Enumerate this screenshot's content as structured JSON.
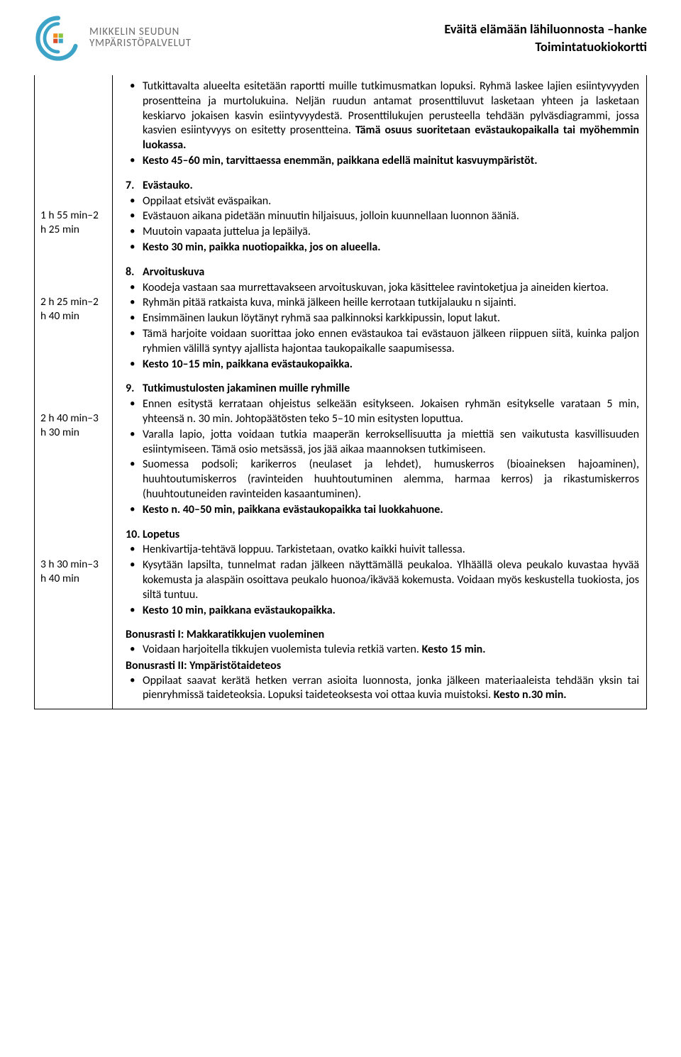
{
  "logo": {
    "line1": "MIKKELIN SEUDUN",
    "line2": "YMPÄRISTÖPALVELUT"
  },
  "header": {
    "title1": "Eväitä elämään lähiluonnosta –hanke",
    "title2": "Toimintatuokiokortti"
  },
  "colors": {
    "swirl_outer": "#3ea4c7",
    "swirl_accent1": "#f28c1e",
    "swirl_accent2": "#8bc540",
    "swirl_accent3": "#d84d2a",
    "logo_text": "#6c6c6c",
    "text": "#000000",
    "border": "#000000",
    "background": "#ffffff"
  },
  "intro": {
    "bullets": [
      "Tutkittavalta alueelta esitetään raportti muille tutkimusmatkan lopuksi. Ryhmä laskee lajien esiintyvyyden prosentteina ja murtolukuina. Neljän ruudun antamat prosenttiluvut lasketaan yhteen ja lasketaan keskiarvo jokaisen kasvin esiintyvyydestä. Prosenttilukujen perusteella tehdään pylväsdiagrammi, jossa kasvien esiintyvyys on esitetty prosentteina. <b>Tämä osuus suoritetaan evästaukopaikalla tai myöhemmin luokassa.</b>",
      "<b>Kesto 45–60 min, tarvittaessa enemmän, paikkana edellä mainitut kasvuympäristöt.</b>"
    ]
  },
  "sections": [
    {
      "time": "1 h 55 min–2 h 25 min",
      "num": "7.",
      "title": "Evästauko.",
      "bullets": [
        "Oppilaat etsivät eväspaikan.",
        "Evästauon aikana pidetään minuutin hiljaisuus, jolloin kuunnellaan luonnon ääniä.",
        "Muutoin vapaata juttelua ja lepäilyä.",
        "<b>Kesto 30 min, paikka nuotiopaikka, jos on alueella.</b>"
      ]
    },
    {
      "time": "2 h 25 min–2 h 40 min",
      "num": "8.",
      "title": "Arvoituskuva",
      "bullets": [
        "Koodeja vastaan saa murrettavakseen arvoituskuvan, joka käsittelee ravintoketjua ja aineiden kiertoa.",
        "Ryhmän pitää ratkaista kuva, minkä jälkeen heille kerrotaan tutkijalauku n sijainti.",
        "Ensimmäinen laukun löytänyt ryhmä saa palkinnoksi karkkipussin, loput lakut.",
        "Tämä harjoite voidaan suorittaa joko ennen evästaukoa tai evästauon jälkeen riippuen siitä, kuinka paljon ryhmien välillä syntyy ajallista hajontaa taukopaikalle saapumisessa.",
        "<b>Kesto 10–15 min, paikkana evästaukopaikka.</b>"
      ]
    },
    {
      "time": "2 h 40 min–3 h 30 min",
      "num": "9.",
      "title": "Tutkimustulosten jakaminen muille ryhmille",
      "bullets": [
        "Ennen esitystä kerrataan ohjeistus selkeään esitykseen. Jokaisen ryhmän esitykselle varataan 5 min, yhteensä n. 30 min. Johtopäätösten teko 5–10 min esitysten loputtua.",
        "Varalla lapio, jotta voidaan tutkia maaperän kerroksellisuutta ja miettiä sen vaikutusta kasvillisuuden esiintymiseen.  Tämä osio metsässä, jos jää aikaa maannoksen tutkimiseen.",
        "Suomessa podsoli; karikerros (neulaset ja lehdet), humuskerros (bioaineksen hajoaminen), huuhtoutumiskerros (ravinteiden huuhtoutuminen alemma, harmaa kerros) ja rikastumiskerros (huuhtoutuneiden ravinteiden kasaantuminen).",
        "<b>Kesto n. 40–50 min, paikkana evästaukopaikka tai luokkahuone.</b>"
      ]
    },
    {
      "time": "3 h 30 min–3 h 40 min",
      "num": "10.",
      "title": "Lopetus",
      "bullets": [
        "Henkivartija-tehtävä loppuu. Tarkistetaan, ovatko kaikki huivit tallessa.",
        "Kysytään lapsilta, tunnelmat radan jälkeen näyttämällä peukaloa. Ylhäällä oleva peukalo kuvastaa hyvää kokemusta ja alaspäin osoittava peukalo huonoa/ikävää kokemusta. Voidaan myös keskustella tuokiosta, jos siltä tuntuu.",
        "<b>Kesto 10 min, paikkana evästaukopaikka.</b>"
      ]
    }
  ],
  "bonus": [
    {
      "head": "Bonusrasti I: Makkaratikkujen vuoleminen",
      "bullets": [
        "Voidaan harjoitella tikkujen vuolemista tulevia retkiä varten. <b>Kesto 15 min.</b>"
      ]
    },
    {
      "head": "Bonusrasti II: Ympäristötaideteos",
      "bullets": [
        "Oppilaat saavat kerätä hetken verran asioita luonnosta, jonka jälkeen materiaaleista tehdään yksin tai pienryhmissä taideteoksia. Lopuksi taideteoksesta voi ottaa kuvia muistoksi. <b>Kesto n.30 min.</b>"
      ]
    }
  ]
}
